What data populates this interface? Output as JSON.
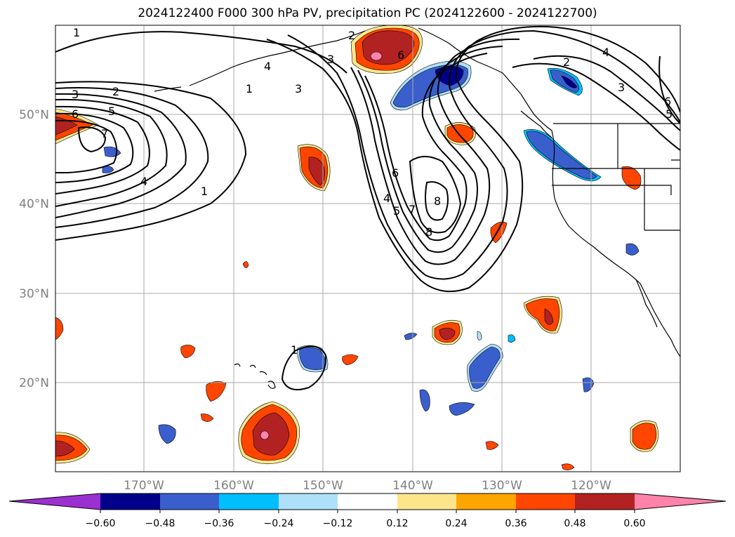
{
  "title": "2024122400 F000 300 hPa PV, precipitation PC (2024122600 - 2024122700)",
  "map": {
    "lat_labels": [
      "50°N",
      "40°N",
      "30°N",
      "20°N"
    ],
    "lon_labels": [
      "170°W",
      "160°W",
      "150°W",
      "140°W",
      "130°W",
      "120°W"
    ],
    "contour_labels": [
      "1",
      "2",
      "3",
      "4",
      "5",
      "6",
      "7",
      "8"
    ]
  },
  "colorbar": {
    "ticks": [
      "−0.60",
      "−0.48",
      "−0.36",
      "−0.24",
      "−0.12",
      "0.12",
      "0.24",
      "0.36",
      "0.48",
      "0.60"
    ],
    "colors": [
      "#9b30d0",
      "#00008b",
      "#3a5fcd",
      "#00bfff",
      "#aee0fa",
      "#ffffff",
      "#fde68a",
      "#ffa500",
      "#ff4500",
      "#b22222",
      "#ff82ab"
    ]
  }
}
